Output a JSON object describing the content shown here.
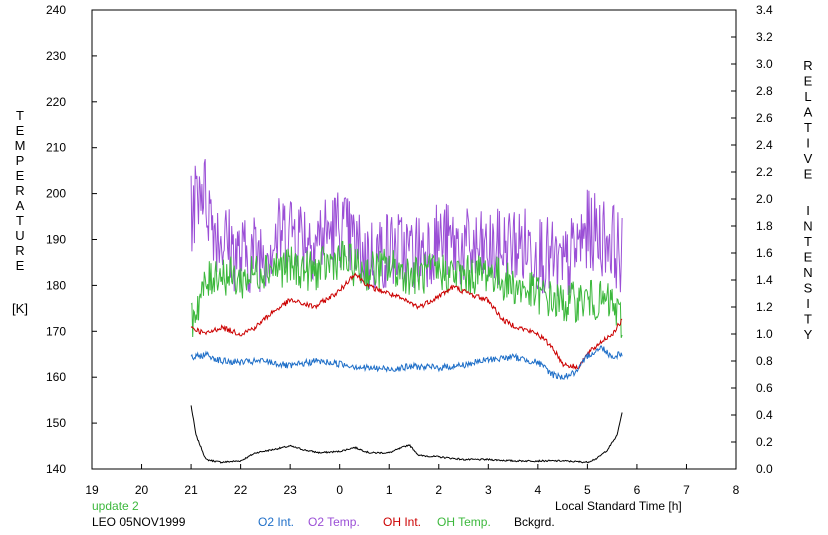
{
  "chart_data": {
    "type": "line",
    "left_axis": {
      "label_letters": [
        "T",
        "E",
        "M",
        "P",
        "E",
        "R",
        "A",
        "T",
        "U",
        "R",
        "E"
      ],
      "unit": "[K]",
      "ylim": [
        140,
        240
      ],
      "ticks": [
        140,
        150,
        160,
        170,
        180,
        190,
        200,
        210,
        220,
        230,
        240
      ]
    },
    "right_axis": {
      "label_word1": [
        "R",
        "E",
        "L",
        "A",
        "T",
        "I",
        "V",
        "E"
      ],
      "label_word2": [
        "I",
        "N",
        "T",
        "E",
        "N",
        "S",
        "I",
        "T",
        "Y"
      ],
      "ylim": [
        0.0,
        3.4
      ],
      "ticks": [
        "0.0",
        "0.2",
        "0.4",
        "0.6",
        "0.8",
        "1.0",
        "1.2",
        "1.4",
        "1.6",
        "1.8",
        "2.0",
        "2.2",
        "2.4",
        "2.6",
        "2.8",
        "3.0",
        "3.2",
        "3.4"
      ]
    },
    "x_axis": {
      "xlabel": "Local Standard Time [h]",
      "xlim": [
        19,
        32
      ],
      "tick_labels": [
        "19",
        "20",
        "21",
        "22",
        "23",
        "0",
        "1",
        "2",
        "3",
        "4",
        "5",
        "6",
        "7",
        "8"
      ]
    },
    "annotation": "update 2",
    "station": "LEO 05NOV1999",
    "series": [
      {
        "name": "O2 Int.",
        "color": "#1f6fc8",
        "axis": "right",
        "x": [
          21.0,
          21.3,
          21.6,
          22.0,
          22.5,
          23.0,
          23.5,
          24.0,
          24.5,
          25.0,
          25.5,
          26.0,
          26.5,
          27.0,
          27.5,
          28.0,
          28.3,
          28.5,
          28.8,
          29.0,
          29.3,
          29.5,
          29.7
        ],
        "values": [
          0.82,
          0.85,
          0.8,
          0.79,
          0.8,
          0.76,
          0.8,
          0.78,
          0.75,
          0.74,
          0.76,
          0.75,
          0.77,
          0.81,
          0.83,
          0.79,
          0.7,
          0.68,
          0.72,
          0.84,
          0.9,
          0.83,
          0.86
        ]
      },
      {
        "name": "O2 Temp.",
        "color": "#9b4fd6",
        "axis": "left",
        "x": [
          21.0,
          21.2,
          21.5,
          22.0,
          22.5,
          23.0,
          23.5,
          24.0,
          24.5,
          25.0,
          25.5,
          26.0,
          26.5,
          27.0,
          27.5,
          28.0,
          28.5,
          29.0,
          29.5,
          29.7
        ],
        "values": [
          195,
          203,
          192,
          186,
          188,
          193,
          190,
          193,
          186,
          188,
          187,
          190,
          188,
          187,
          189,
          188,
          183,
          192,
          190,
          186
        ]
      },
      {
        "name": "OH Int.",
        "color": "#cc0000",
        "axis": "right",
        "x": [
          21.0,
          21.3,
          21.6,
          22.0,
          22.3,
          22.6,
          23.0,
          23.5,
          24.0,
          24.3,
          24.6,
          25.0,
          25.3,
          25.6,
          26.0,
          26.3,
          26.6,
          27.0,
          27.3,
          27.6,
          28.0,
          28.3,
          28.5,
          28.8,
          29.0,
          29.3,
          29.5,
          29.7
        ],
        "values": [
          1.05,
          1.0,
          1.05,
          1.0,
          1.05,
          1.15,
          1.25,
          1.2,
          1.32,
          1.45,
          1.35,
          1.3,
          1.25,
          1.2,
          1.28,
          1.35,
          1.3,
          1.25,
          1.1,
          1.05,
          1.0,
          0.9,
          0.78,
          0.75,
          0.85,
          0.95,
          1.0,
          1.1
        ]
      },
      {
        "name": "OH Temp.",
        "color": "#3cb83c",
        "axis": "left",
        "x": [
          21.0,
          21.2,
          21.5,
          22.0,
          22.5,
          23.0,
          23.5,
          24.0,
          24.5,
          25.0,
          25.5,
          26.0,
          26.5,
          27.0,
          27.5,
          28.0,
          28.5,
          29.0,
          29.5,
          29.7
        ],
        "values": [
          172,
          178,
          183,
          181,
          184,
          184,
          183,
          186,
          183,
          184,
          182,
          183,
          182,
          183,
          180,
          178,
          176,
          177,
          176,
          172
        ]
      },
      {
        "name": "Bckgrd.",
        "color": "#000000",
        "axis": "right",
        "x": [
          21.0,
          21.1,
          21.3,
          21.6,
          22.0,
          22.3,
          22.6,
          23.0,
          23.3,
          23.6,
          24.0,
          24.3,
          24.6,
          25.0,
          25.4,
          25.6,
          26.0,
          26.5,
          27.0,
          27.5,
          28.0,
          28.5,
          29.0,
          29.2,
          29.4,
          29.6,
          29.7
        ],
        "values": [
          0.47,
          0.25,
          0.07,
          0.05,
          0.06,
          0.12,
          0.14,
          0.17,
          0.14,
          0.12,
          0.13,
          0.16,
          0.12,
          0.12,
          0.18,
          0.1,
          0.09,
          0.07,
          0.07,
          0.06,
          0.06,
          0.06,
          0.05,
          0.08,
          0.14,
          0.25,
          0.42
        ]
      }
    ]
  }
}
